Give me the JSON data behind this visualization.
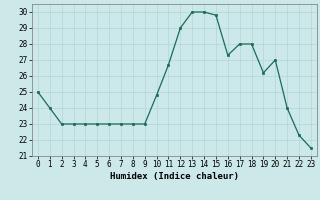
{
  "x": [
    0,
    1,
    2,
    3,
    4,
    5,
    6,
    7,
    8,
    9,
    10,
    11,
    12,
    13,
    14,
    15,
    16,
    17,
    18,
    19,
    20,
    21,
    22,
    23
  ],
  "y": [
    25,
    24,
    23,
    23,
    23,
    23,
    23,
    23,
    23,
    23,
    24.8,
    26.7,
    29,
    30,
    30,
    29.8,
    27.3,
    28,
    28,
    26.2,
    27,
    24,
    22.3,
    21.5
  ],
  "line_color": "#1a6b5a",
  "marker_color": "#1a6b5a",
  "bg_color": "#cce8e8",
  "grid_color": "#b0d8d8",
  "xlabel": "Humidex (Indice chaleur)",
  "ylim": [
    21,
    30.5
  ],
  "xlim": [
    -0.5,
    23.5
  ],
  "yticks": [
    21,
    22,
    23,
    24,
    25,
    26,
    27,
    28,
    29,
    30
  ],
  "xticks": [
    0,
    1,
    2,
    3,
    4,
    5,
    6,
    7,
    8,
    9,
    10,
    11,
    12,
    13,
    14,
    15,
    16,
    17,
    18,
    19,
    20,
    21,
    22,
    23
  ],
  "xlabel_fontsize": 6.5,
  "tick_fontsize": 5.5
}
